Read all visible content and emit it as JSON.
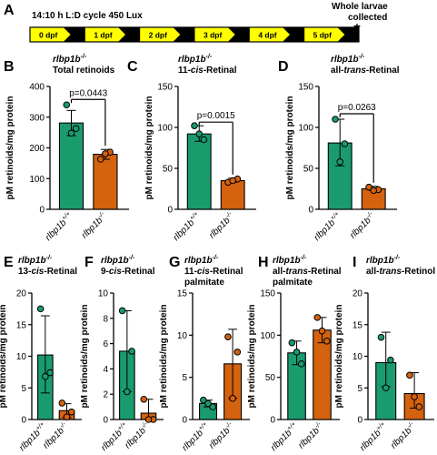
{
  "panel_a": {
    "letter": "A",
    "protocol_label": "14:10 h L:D cycle 450 Lux",
    "end_label_line1": "Whole larvae",
    "end_label_line2": "collected",
    "days": [
      "0 dpf",
      "1 dpf",
      "2 dpf",
      "3 dpf",
      "4 dpf",
      "5 dpf"
    ],
    "colors": {
      "light": "#ffff00",
      "dark": "#000000"
    }
  },
  "genotype_base": "rlbp1b",
  "axis_title": "pM retinoids/mg protein",
  "colors": {
    "wt": "#1a9b6e",
    "ko": "#d4620f",
    "dot_wt": "#1a9b6e",
    "dot_ko": "#d4620f"
  },
  "chart_data": [
    {
      "type": "bar",
      "panel": "B",
      "title_genotype": "rlbp1b",
      "title_sup": "-/-",
      "subtitle": "Total retinoids",
      "categories": [
        "rlbp1b+/+",
        "rlbp1b-/-"
      ],
      "values": [
        281,
        179
      ],
      "sd": [
        [
          240,
          322
        ],
        [
          163,
          195
        ]
      ],
      "points": [
        [
          340,
          263,
          248
        ],
        [
          163,
          186,
          181
        ]
      ],
      "ylim": [
        0,
        400
      ],
      "yticks": [
        0,
        100,
        200,
        300,
        400
      ],
      "annotation": "p=0.0443",
      "ylabel": "pM retinoids/mg protein"
    },
    {
      "type": "bar",
      "panel": "C",
      "title_genotype": "rlbp1b",
      "title_sup": "-/-",
      "subtitle_prefix": "11-",
      "subtitle_italic": "cis",
      "subtitle_suffix": "-Retinal",
      "categories": [
        "rlbp1b+/+",
        "rlbp1b-/-"
      ],
      "values": [
        92,
        35
      ],
      "sd": [
        [
          83,
          102
        ],
        [
          33,
          38
        ]
      ],
      "points": [
        [
          102,
          85,
          92
        ],
        [
          33,
          37,
          35
        ]
      ],
      "ylim": [
        0,
        150
      ],
      "yticks": [
        0,
        50,
        100,
        150
      ],
      "annotation": "p=0.0015",
      "ylabel": "pM retinoids/mg protein"
    },
    {
      "type": "bar",
      "panel": "D",
      "title_genotype": "rlbp1b",
      "title_sup": "-/-",
      "subtitle_prefix": "all-",
      "subtitle_italic": "trans",
      "subtitle_suffix": "-Retinal",
      "categories": [
        "rlbp1b+/+",
        "rlbp1b-/-"
      ],
      "values": [
        81,
        25
      ],
      "sd": [
        [
          53,
          110
        ],
        [
          23,
          28
        ]
      ],
      "points": [
        [
          110,
          80,
          58
        ],
        [
          27,
          24,
          23
        ]
      ],
      "ylim": [
        0,
        150
      ],
      "yticks": [
        0,
        50,
        100,
        150
      ],
      "annotation": "p=0.0263",
      "ylabel": "pM retinoids/mg protein"
    },
    {
      "type": "bar",
      "panel": "E",
      "title_genotype": "rlbp1b",
      "title_sup": "-/-",
      "subtitle_prefix": "13-",
      "subtitle_italic": "cis",
      "subtitle_suffix": "-Retinal",
      "categories": [
        "rlbp1b+/+",
        "rlbp1b-/-"
      ],
      "values": [
        10.2,
        1.4
      ],
      "sd": [
        [
          4.2,
          16.4
        ],
        [
          0.3,
          2.5
        ]
      ],
      "points": [
        [
          17.5,
          7.4,
          6.8
        ],
        [
          2.6,
          1.2,
          0.4
        ]
      ],
      "ylim": [
        0,
        20
      ],
      "yticks": [
        0,
        5,
        10,
        15,
        20
      ],
      "ylabel": "pM retinoids/mg protein"
    },
    {
      "type": "bar",
      "panel": "F",
      "title_genotype": "rlbp1b",
      "title_sup": "-/-",
      "subtitle_prefix": "9-",
      "subtitle_italic": "cis",
      "subtitle_suffix": "-Retinal",
      "categories": [
        "rlbp1b+/+",
        "rlbp1b-/-"
      ],
      "values": [
        5.4,
        0.5
      ],
      "sd": [
        [
          2.2,
          8.6
        ],
        [
          0.0,
          1.6
        ]
      ],
      "points": [
        [
          8.6,
          5.4,
          2.2
        ],
        [
          1.6,
          0.0,
          0.0
        ]
      ],
      "ylim": [
        0,
        10
      ],
      "yticks": [
        0,
        2,
        4,
        6,
        8,
        10
      ],
      "ylabel": "pM retinoids/mg protein"
    },
    {
      "type": "bar",
      "panel": "G",
      "title_genotype": "rlbp1b",
      "title_sup": "-/-",
      "subtitle_prefix": "11-",
      "subtitle_italic": "cis",
      "subtitle_suffix": "-Retinal",
      "subtitle2": "palmitate",
      "categories": [
        "rlbp1b+/+",
        "rlbp1b-/-"
      ],
      "values": [
        1.9,
        6.6
      ],
      "sd": [
        [
          1.5,
          2.3
        ],
        [
          2.5,
          10.7
        ]
      ],
      "points": [
        [
          2.3,
          1.5,
          1.9
        ],
        [
          9.8,
          8.0,
          2.5
        ]
      ],
      "ylim": [
        0,
        15
      ],
      "yticks": [
        0,
        5,
        10,
        15
      ],
      "ylabel": "pM retinoids/mg protein"
    },
    {
      "type": "bar",
      "panel": "H",
      "title_genotype": "rlbp1b",
      "title_sup": "-/-",
      "subtitle_prefix": "all-",
      "subtitle_italic": "trans",
      "subtitle_suffix": "-Retinal",
      "subtitle2": "palmitate",
      "categories": [
        "rlbp1b+/+",
        "rlbp1b-/-"
      ],
      "values": [
        79,
        106
      ],
      "sd": [
        [
          65,
          93
        ],
        [
          91,
          121
        ]
      ],
      "points": [
        [
          91,
          66,
          80
        ],
        [
          121,
          93,
          105
        ]
      ],
      "ylim": [
        0,
        150
      ],
      "yticks": [
        0,
        50,
        100,
        150
      ],
      "ylabel": "pM retinoids/mg protein"
    },
    {
      "type": "bar",
      "panel": "I",
      "title_genotype": "rlbp1b",
      "title_sup": "-/-",
      "subtitle_prefix": "all-",
      "subtitle_italic": "trans",
      "subtitle_suffix": "-Retinol",
      "categories": [
        "rlbp1b+/+",
        "rlbp1b-/-"
      ],
      "values": [
        9.0,
        4.1
      ],
      "sd": [
        [
          5.2,
          13.8
        ],
        [
          1.8,
          7.4
        ]
      ],
      "points": [
        [
          13.0,
          9.4,
          5.0
        ],
        [
          7.0,
          2.0,
          3.6
        ]
      ],
      "ylim": [
        0,
        20
      ],
      "yticks": [
        0,
        5,
        10,
        15,
        20
      ],
      "ylabel": "pM retinoids/mg protein"
    }
  ]
}
